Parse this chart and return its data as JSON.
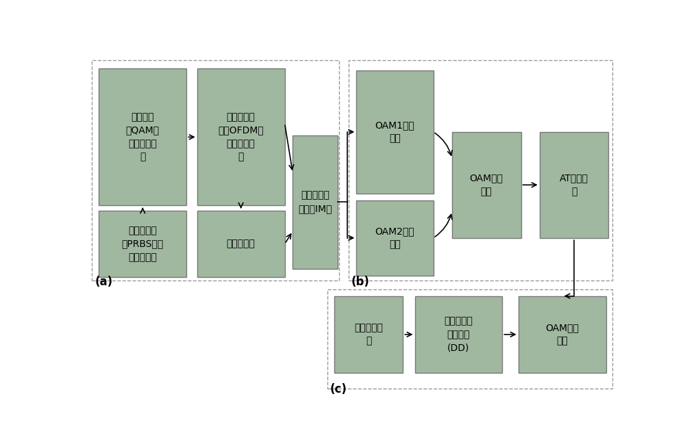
{
  "bg_color": "#ffffff",
  "box_color": "#a0b8a0",
  "box_edge_color": "#777777",
  "text_color": "#000000",
  "outer_border_color": "#999999",
  "arrow_color": "#000000",
  "font_size": 10,
  "label_font_size": 12,
  "panel_a": {
    "label": "(a)",
    "outer": [
      0.012,
      0.335,
      0.465,
      0.645
    ],
    "qam": [
      0.025,
      0.555,
      0.165,
      0.4
    ],
    "ofdm": [
      0.21,
      0.555,
      0.165,
      0.4
    ],
    "prbs": [
      0.025,
      0.345,
      0.165,
      0.195
    ],
    "gauss": [
      0.21,
      0.345,
      0.165,
      0.195
    ],
    "im": [
      0.39,
      0.37,
      0.085,
      0.39
    ]
  },
  "panel_b": {
    "label": "(b)",
    "outer": [
      0.495,
      0.335,
      0.497,
      0.645
    ],
    "oam1": [
      0.51,
      0.59,
      0.145,
      0.36
    ],
    "oam2": [
      0.51,
      0.35,
      0.145,
      0.22
    ],
    "mux": [
      0.69,
      0.46,
      0.13,
      0.31
    ],
    "at": [
      0.855,
      0.46,
      0.13,
      0.31
    ]
  },
  "panel_c": {
    "label": "(c)",
    "outer": [
      0.455,
      0.02,
      0.537,
      0.29
    ],
    "oam_dem": [
      0.815,
      0.065,
      0.165,
      0.225
    ],
    "dd": [
      0.62,
      0.065,
      0.165,
      0.225
    ],
    "offline": [
      0.468,
      0.065,
      0.13,
      0.225
    ]
  }
}
